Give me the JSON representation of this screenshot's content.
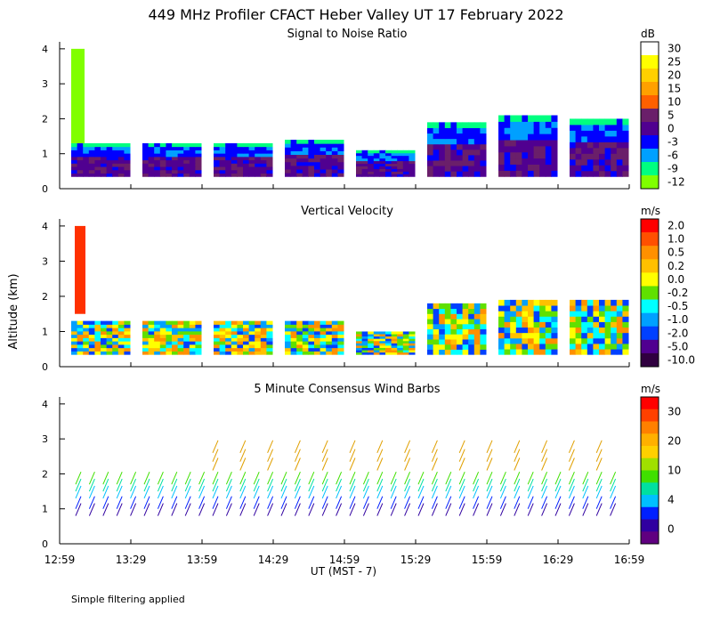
{
  "title": "449 MHz Profiler CFACT Heber Valley UT 17 February 2022",
  "footnote": "Simple filtering applied",
  "ylabel": "Altitude (km)",
  "xlabel": "UT  (MST - 7)",
  "chart_data": [
    {
      "type": "heatmap",
      "title": "Signal to Noise Ratio",
      "units": "dB",
      "ylim": [
        0,
        4.2
      ],
      "yticks": [
        "0",
        "1",
        "2",
        "3",
        "4"
      ],
      "colorbar": {
        "labels": [
          "30",
          "25",
          "20",
          "15",
          "10",
          "5",
          "0",
          "-3",
          "-6",
          "-9",
          "-12"
        ],
        "colors": [
          "#ffffff",
          "#ffff00",
          "#ffd000",
          "#ffa000",
          "#ff6000",
          "#6a1f6a",
          "#500090",
          "#0000ff",
          "#00a0ff",
          "#00ff80",
          "#80ff00"
        ]
      },
      "segments": [
        {
          "start": "12:59",
          "end": "13:29",
          "top_km": 1.3
        },
        {
          "start": "13:29",
          "end": "13:59",
          "top_km": 1.3
        },
        {
          "start": "13:59",
          "end": "14:29",
          "top_km": 1.3
        },
        {
          "start": "14:29",
          "end": "14:59",
          "top_km": 1.4
        },
        {
          "start": "14:59",
          "end": "15:29",
          "top_km": 1.1
        },
        {
          "start": "15:29",
          "end": "15:59",
          "top_km": 1.9
        },
        {
          "start": "15:59",
          "end": "16:29",
          "top_km": 2.1
        },
        {
          "start": "16:29",
          "end": "16:59",
          "top_km": 2.0
        }
      ]
    },
    {
      "type": "heatmap",
      "title": "Vertical Velocity",
      "units": "m/s",
      "ylim": [
        0,
        4.2
      ],
      "yticks": [
        "0",
        "1",
        "2",
        "3",
        "4"
      ],
      "colorbar": {
        "labels": [
          "2.0",
          "1.0",
          "0.5",
          "0.2",
          "0.0",
          "-0.2",
          "-0.5",
          "-1.0",
          "-2.0",
          "-5.0",
          "-10.0"
        ],
        "colors": [
          "#ff0000",
          "#ff5000",
          "#ff9000",
          "#ffc000",
          "#ffff00",
          "#60e000",
          "#00ffff",
          "#00a0ff",
          "#0040ff",
          "#500090",
          "#300040"
        ]
      },
      "segments": [
        {
          "start": "12:59",
          "end": "13:29",
          "top_km": 1.3
        },
        {
          "start": "13:29",
          "end": "13:59",
          "top_km": 1.3
        },
        {
          "start": "13:59",
          "end": "14:29",
          "top_km": 1.3
        },
        {
          "start": "14:29",
          "end": "14:59",
          "top_km": 1.3
        },
        {
          "start": "14:59",
          "end": "15:29",
          "top_km": 1.0
        },
        {
          "start": "15:29",
          "end": "15:59",
          "top_km": 1.8
        },
        {
          "start": "15:59",
          "end": "16:29",
          "top_km": 1.9
        },
        {
          "start": "16:29",
          "end": "16:59",
          "top_km": 1.9
        }
      ]
    },
    {
      "type": "scatter",
      "title": "5 Minute Consensus Wind Barbs",
      "units": "m/s",
      "ylim": [
        0,
        4.2
      ],
      "yticks": [
        "0",
        "1",
        "2",
        "3",
        "4"
      ],
      "colorbar": {
        "labels": [
          "30",
          "20",
          "10",
          "4",
          "0"
        ],
        "colors": [
          "#ff0000",
          "#ff4000",
          "#ff8000",
          "#ffb000",
          "#ffd000",
          "#a0e000",
          "#40e000",
          "#00e0a0",
          "#00c0ff",
          "#0020ff",
          "#3000a0",
          "#600080"
        ]
      },
      "barb_heights_km": [
        0.8,
        1.0,
        1.3,
        1.5,
        1.7
      ],
      "upper_barb_heights_km": [
        2.1,
        2.35,
        2.6
      ]
    }
  ],
  "xticks": [
    "12:59",
    "13:29",
    "13:59",
    "14:29",
    "14:59",
    "15:29",
    "15:59",
    "16:29",
    "16:59"
  ]
}
